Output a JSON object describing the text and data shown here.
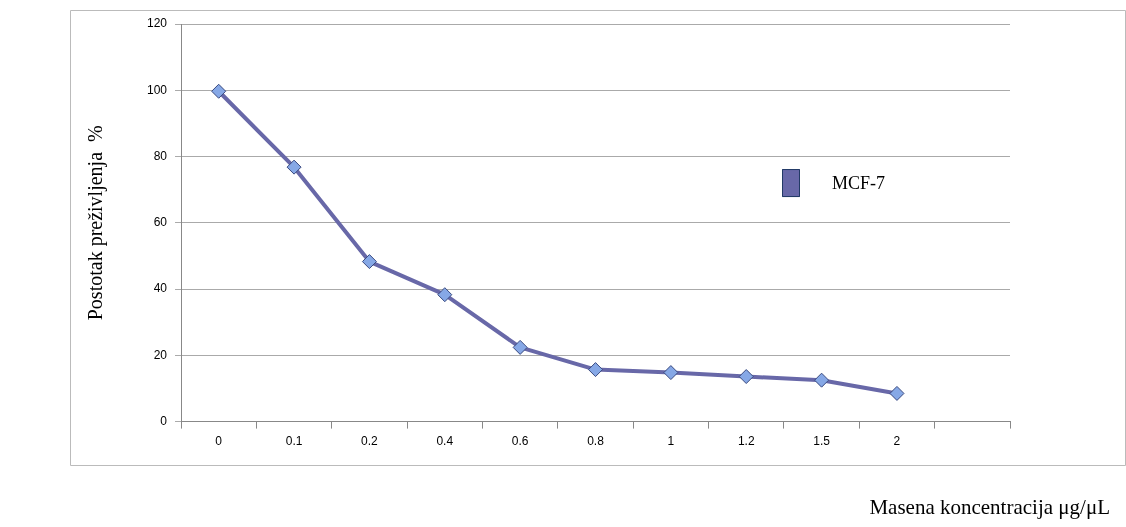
{
  "chart_data": {
    "type": "line",
    "xlabel": "Masena koncentracija μg/μL",
    "ylabel": "Postotak preživljenja  %",
    "categories": [
      "0",
      "0.1",
      "0.2",
      "0.4",
      "0.6",
      "0.8",
      "1",
      "1.2",
      "1.5",
      "2",
      null
    ],
    "series": [
      {
        "name": "MCF-7",
        "color": "#6868a8",
        "values": [
          99.7,
          76.8,
          48.3,
          38.3,
          22.4,
          15.7,
          14.8,
          13.6,
          12.5,
          8.5,
          null
        ]
      }
    ],
    "ylim": [
      0,
      120
    ],
    "yticks": [
      0,
      20,
      40,
      60,
      80,
      100,
      120
    ],
    "grid": "y",
    "legend": "right",
    "marker": "diamond",
    "line_style": "solid"
  }
}
